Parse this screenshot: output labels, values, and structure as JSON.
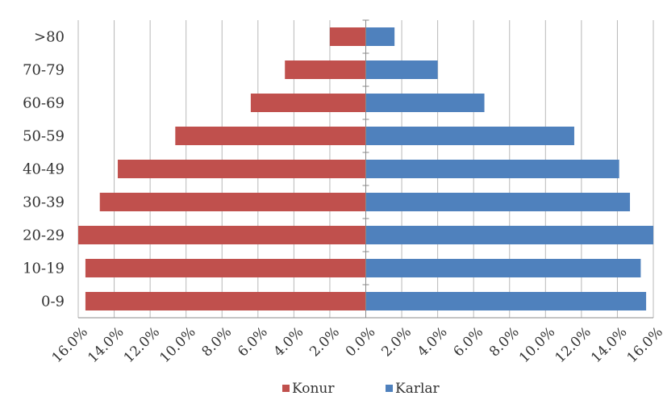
{
  "chart_data": {
    "type": "bar",
    "orientation": "horizontal",
    "layout": "population-pyramid",
    "categories": [
      "0-9",
      "10-19",
      "20-29",
      "30-39",
      "40-49",
      "50-59",
      "60-69",
      "70-79",
      ">80"
    ],
    "series": [
      {
        "name": "Konur",
        "side": "left",
        "color": "#c0504d",
        "values": [
          15.6,
          15.6,
          16.0,
          14.8,
          13.8,
          10.6,
          6.4,
          4.5,
          2.0
        ]
      },
      {
        "name": "Karlar",
        "side": "right",
        "color": "#4f81bd",
        "values": [
          15.6,
          15.3,
          16.0,
          14.7,
          14.1,
          11.6,
          6.6,
          4.0,
          1.6
        ]
      }
    ],
    "xlim": [
      -16,
      16
    ],
    "x_ticks": [
      -16,
      -14,
      -12,
      -10,
      -8,
      -6,
      -4,
      -2,
      0,
      2,
      4,
      6,
      8,
      10,
      12,
      14,
      16
    ],
    "x_tick_labels": [
      "16.0%",
      "14.0%",
      "12.0%",
      "10.0%",
      "8.0%",
      "6.0%",
      "4.0%",
      "2.0%",
      "0.0%",
      "2.0%",
      "4.0%",
      "6.0%",
      "8.0%",
      "10.0%",
      "12.0%",
      "14.0%",
      "16.0%"
    ],
    "grid": "vertical",
    "legend_position": "bottom",
    "title": "",
    "xlabel": "",
    "ylabel": ""
  }
}
